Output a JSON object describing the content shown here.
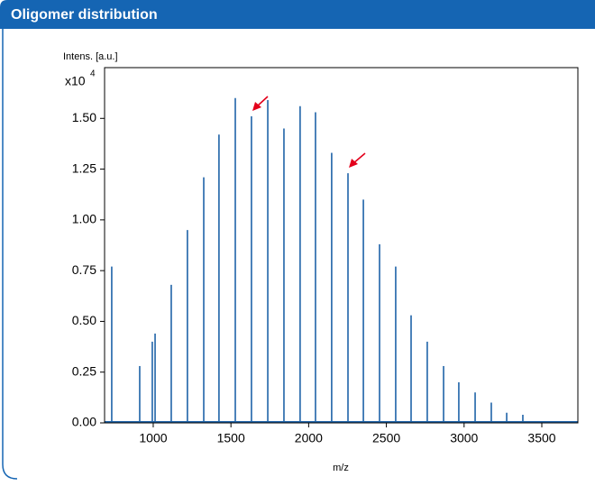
{
  "chart_data": {
    "type": "stem",
    "title": "Oligomer distribution",
    "y_axis_label": "Intens. [a.u.]",
    "y_multiplier": {
      "base": "x10",
      "exponent": "4"
    },
    "x_axis_label": "m/z",
    "color": "#1f63a8",
    "x": [
      733,
      913,
      994,
      1012,
      1116,
      1220,
      1325,
      1423,
      1528,
      1632,
      1737,
      1841,
      1945,
      2044,
      2148,
      2253,
      2352,
      2456,
      2560,
      2659,
      2763,
      2868,
      2966,
      3071,
      3175,
      3274,
      3378
    ],
    "values": [
      0.77,
      0.28,
      0.4,
      0.44,
      0.68,
      0.95,
      1.21,
      1.42,
      1.6,
      1.51,
      1.59,
      1.45,
      1.56,
      1.53,
      1.33,
      1.23,
      1.1,
      0.88,
      0.77,
      0.53,
      0.4,
      0.28,
      0.2,
      0.15,
      0.1,
      0.05,
      0.04
    ],
    "xlim": [
      687,
      3732
    ],
    "ylim": [
      0,
      1.75
    ],
    "xticks": [
      1000,
      1500,
      2000,
      2500,
      3000,
      3500
    ],
    "yticks": [
      {
        "value": 0,
        "label": "0.00"
      },
      {
        "value": 0.25,
        "label": "0.25"
      },
      {
        "value": 0.5,
        "label": "0.50"
      },
      {
        "value": 0.75,
        "label": "0.75"
      },
      {
        "value": 1,
        "label": "1.00"
      },
      {
        "value": 1.25,
        "label": "1.25"
      },
      {
        "value": 1.5,
        "label": "1.50"
      }
    ]
  }
}
